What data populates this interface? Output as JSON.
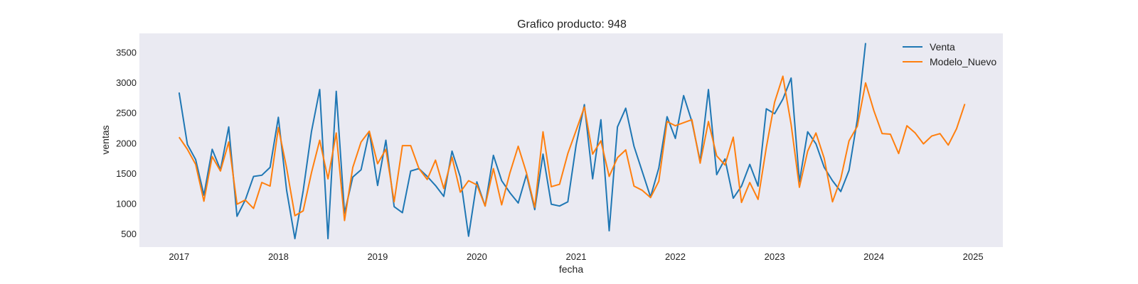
{
  "chart_data": {
    "type": "line",
    "title": "Grafico producto: 948",
    "xlabel": "fecha",
    "ylabel": "ventas",
    "x_start": "2017-01",
    "x_frequency": "monthly",
    "xlim": [
      2016.6,
      2025.3
    ],
    "ylim": [
      280,
      3820
    ],
    "x_ticks": [
      2017,
      2018,
      2019,
      2020,
      2021,
      2022,
      2023,
      2024,
      2025
    ],
    "x_tick_labels": [
      "2017",
      "2018",
      "2019",
      "2020",
      "2021",
      "2022",
      "2023",
      "2024",
      "2025"
    ],
    "y_ticks": [
      500,
      1000,
      1500,
      2000,
      2500,
      3000,
      3500
    ],
    "y_tick_labels": [
      "500",
      "1000",
      "1500",
      "2000",
      "2500",
      "3000",
      "3500"
    ],
    "grid": false,
    "legend_position": "top-right",
    "background": "#eaeaf2",
    "series": [
      {
        "name": "Venta",
        "color": "#1f77b4",
        "values": [
          2840,
          1980,
          1730,
          1140,
          1900,
          1560,
          2270,
          790,
          1060,
          1450,
          1470,
          1600,
          2430,
          1220,
          420,
          1210,
          2190,
          2890,
          420,
          2860,
          840,
          1440,
          1560,
          2190,
          1300,
          2050,
          950,
          850,
          1540,
          1580,
          1450,
          1300,
          1120,
          1870,
          1440,
          460,
          1360,
          960,
          1800,
          1380,
          1180,
          1010,
          1480,
          900,
          1820,
          990,
          960,
          1030,
          1970,
          2640,
          1410,
          2390,
          550,
          2270,
          2580,
          1950,
          1530,
          1110,
          1590,
          2440,
          2080,
          2790,
          2360,
          1700,
          2890,
          1480,
          1740,
          1090,
          1290,
          1650,
          1290,
          2570,
          2490,
          2730,
          3080,
          1360,
          2190,
          1990,
          1600,
          1380,
          1200,
          1550,
          2390,
          3660
        ]
      },
      {
        "name": "Modelo_Nuevo",
        "color": "#ff7f0e",
        "values": [
          2100,
          1900,
          1650,
          1040,
          1780,
          1540,
          2020,
          990,
          1060,
          920,
          1350,
          1290,
          2260,
          1590,
          800,
          880,
          1510,
          2050,
          1410,
          2170,
          720,
          1600,
          2020,
          2200,
          1660,
          1900,
          1030,
          1960,
          1960,
          1580,
          1400,
          1720,
          1250,
          1770,
          1190,
          1380,
          1310,
          960,
          1580,
          980,
          1510,
          1950,
          1510,
          940,
          2190,
          1280,
          1320,
          1830,
          2210,
          2600,
          1820,
          2040,
          1450,
          1760,
          1890,
          1290,
          1220,
          1100,
          1370,
          2360,
          2290,
          2340,
          2390,
          1670,
          2360,
          1790,
          1640,
          2100,
          1020,
          1350,
          1070,
          1930,
          2680,
          3110,
          2310,
          1270,
          1870,
          2170,
          1750,
          1030,
          1410,
          2040,
          2280,
          3000,
          2540,
          2160,
          2150,
          1830,
          2290,
          2170,
          1990,
          2120,
          2160,
          1970,
          2240,
          2650
        ]
      }
    ]
  }
}
